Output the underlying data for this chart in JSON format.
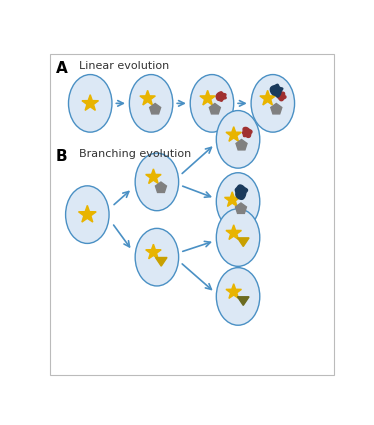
{
  "ellipse_face": "#dce8f5",
  "ellipse_edge": "#4a90c4",
  "arrow_color": "#4a90c4",
  "star_color": "#e8b400",
  "pentagon_color": "#808080",
  "red_blob_color": "#a03030",
  "dark_blob_color": "#1a3a5c",
  "gold_tri_color": "#c8a000",
  "dark_tri_color": "#6b6b20",
  "label_A": "A",
  "label_B": "B",
  "text_A": "Linear evolution",
  "text_B": "Branching evolution",
  "fig_width": 3.74,
  "fig_height": 4.25
}
